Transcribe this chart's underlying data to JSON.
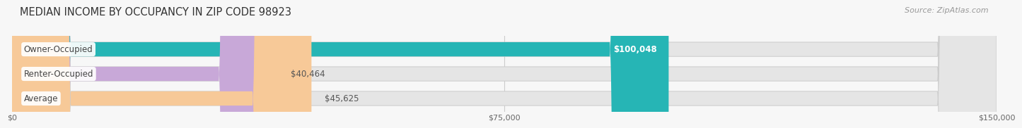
{
  "title": "MEDIAN INCOME BY OCCUPANCY IN ZIP CODE 98923",
  "source": "Source: ZipAtlas.com",
  "categories": [
    "Owner-Occupied",
    "Renter-Occupied",
    "Average"
  ],
  "values": [
    100048,
    40464,
    45625
  ],
  "bar_colors": [
    "#26b5b5",
    "#c8a8d8",
    "#f7c998"
  ],
  "bg_bar_color": "#e5e5e5",
  "bg_bar_edge": "#cccccc",
  "label_values": [
    "$100,048",
    "$40,464",
    "$45,625"
  ],
  "x_ticks": [
    0,
    75000,
    150000
  ],
  "x_tick_labels": [
    "$0",
    "$75,000",
    "$150,000"
  ],
  "xlim": [
    0,
    150000
  ],
  "bar_height": 0.58,
  "background_color": "#f7f7f7",
  "title_fontsize": 10.5,
  "source_fontsize": 8,
  "label_fontsize": 8.5,
  "category_fontsize": 8.5
}
